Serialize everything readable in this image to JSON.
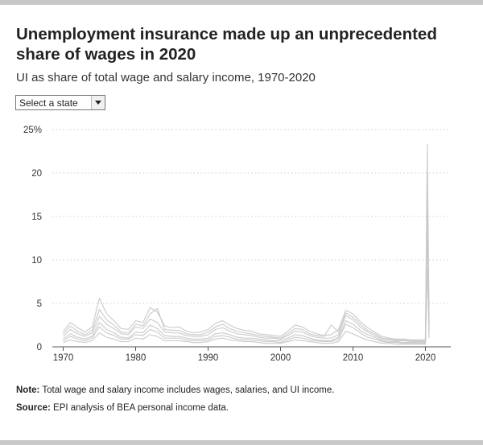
{
  "header": {
    "title": "Unemployment insurance made up an unprecedented share of wages in 2020",
    "subtitle": "UI as share of total wage and salary income, 1970-2020"
  },
  "state_selector": {
    "selected": "Select a state"
  },
  "footer": {
    "note_label": "Note:",
    "note_text": " Total wage and salary income includes wages, salaries, and UI income.",
    "source_label": "Source:",
    "source_text": " EPI analysis of BEA personal income data."
  },
  "colors": {
    "lines": "#c9c9c9",
    "grid": "#cfcfcf",
    "axis": "#555555"
  },
  "chart_data": {
    "type": "line",
    "title": "Unemployment insurance made up an unprecedented share of wages in 2020",
    "subtitle": "UI as share of total wage and salary income, 1970-2020",
    "xlabel": "",
    "ylabel": "",
    "xlim": [
      1968.5,
      2023.5
    ],
    "ylim": [
      0,
      25
    ],
    "y_ticks": [
      0,
      5,
      10,
      15,
      20,
      25
    ],
    "y_tick_labels": [
      "0",
      "5",
      "10",
      "15",
      "20",
      "25%"
    ],
    "x_ticks": [
      1970,
      1980,
      1990,
      2000,
      2010,
      2020
    ],
    "x_tick_labels": [
      "1970",
      "1980",
      "1990",
      "2000",
      "2010",
      "2020"
    ],
    "grid": "horizontal dotted",
    "legend": "none",
    "x": [
      1970,
      1971,
      1972,
      1973,
      1974,
      1975,
      1976,
      1977,
      1978,
      1979,
      1980,
      1981,
      1982,
      1983,
      1984,
      1985,
      1986,
      1987,
      1988,
      1989,
      1990,
      1991,
      1992,
      1993,
      1994,
      1995,
      1996,
      1997,
      1998,
      1999,
      2000,
      2001,
      2002,
      2003,
      2004,
      2005,
      2006,
      2007,
      2008,
      2009,
      2010,
      2011,
      2012,
      2013,
      2014,
      2015,
      2016,
      2017,
      2018,
      2019,
      2020,
      2020.25,
      2020.5
    ],
    "series": [
      {
        "values": [
          0.7,
          1.2,
          0.9,
          0.7,
          1.0,
          2.3,
          1.6,
          1.3,
          0.9,
          0.9,
          1.4,
          1.3,
          2.0,
          1.7,
          1.0,
          1.0,
          1.0,
          0.8,
          0.7,
          0.7,
          0.8,
          1.2,
          1.3,
          1.1,
          0.9,
          0.8,
          0.8,
          0.7,
          0.6,
          0.6,
          0.5,
          0.8,
          1.1,
          1.0,
          0.8,
          0.7,
          0.6,
          0.6,
          0.9,
          2.6,
          2.2,
          1.6,
          1.1,
          0.9,
          0.6,
          0.5,
          0.5,
          0.4,
          0.4,
          0.4,
          0.4,
          13.5,
          1.5
        ]
      },
      {
        "values": [
          1.2,
          2.0,
          1.5,
          1.2,
          1.6,
          3.5,
          2.6,
          2.1,
          1.5,
          1.4,
          2.3,
          2.1,
          3.2,
          2.8,
          1.7,
          1.6,
          1.6,
          1.3,
          1.2,
          1.2,
          1.4,
          2.0,
          2.2,
          1.8,
          1.5,
          1.4,
          1.3,
          1.1,
          1.0,
          1.0,
          0.9,
          1.3,
          1.8,
          1.7,
          1.3,
          1.1,
          1.0,
          1.0,
          1.4,
          3.6,
          3.1,
          2.3,
          1.7,
          1.3,
          0.9,
          0.8,
          0.7,
          0.7,
          0.6,
          0.6,
          0.6,
          17.5,
          2.5
        ]
      },
      {
        "values": [
          0.5,
          0.8,
          0.6,
          0.5,
          0.7,
          1.6,
          1.1,
          0.9,
          0.6,
          0.6,
          1.0,
          0.9,
          1.4,
          1.2,
          0.7,
          0.7,
          0.7,
          0.6,
          0.5,
          0.5,
          0.6,
          0.9,
          1.0,
          0.8,
          0.7,
          0.6,
          0.6,
          0.5,
          0.4,
          0.4,
          0.4,
          0.6,
          0.8,
          0.7,
          0.6,
          0.5,
          0.4,
          0.4,
          0.6,
          1.8,
          1.5,
          1.1,
          0.8,
          0.6,
          0.4,
          0.4,
          0.3,
          0.3,
          0.3,
          0.3,
          0.3,
          9.0,
          1.0
        ]
      },
      {
        "values": [
          1.8,
          2.8,
          2.2,
          1.7,
          2.3,
          5.6,
          3.8,
          3.0,
          2.1,
          2.0,
          3.0,
          2.8,
          4.5,
          4.0,
          2.4,
          2.2,
          2.3,
          1.8,
          1.6,
          1.7,
          2.0,
          2.7,
          3.0,
          2.5,
          2.1,
          1.9,
          1.8,
          1.5,
          1.4,
          1.3,
          1.2,
          1.8,
          2.5,
          2.3,
          1.8,
          1.5,
          1.3,
          1.4,
          2.0,
          4.2,
          3.8,
          2.9,
          2.2,
          1.7,
          1.2,
          1.0,
          0.9,
          0.9,
          0.8,
          0.8,
          0.8,
          23.3,
          3.2
        ]
      },
      {
        "values": [
          0.9,
          1.5,
          1.1,
          0.9,
          1.2,
          2.8,
          2.0,
          1.6,
          1.1,
          1.0,
          1.7,
          1.6,
          2.5,
          2.1,
          1.3,
          1.2,
          1.2,
          1.0,
          0.9,
          0.9,
          1.0,
          1.5,
          1.6,
          1.4,
          1.1,
          1.0,
          1.0,
          0.9,
          0.8,
          0.7,
          0.7,
          1.0,
          1.4,
          1.3,
          1.0,
          0.8,
          0.7,
          0.7,
          1.1,
          3.0,
          2.6,
          1.9,
          1.4,
          1.1,
          0.7,
          0.6,
          0.6,
          0.5,
          0.5,
          0.5,
          0.5,
          15.0,
          2.0
        ]
      },
      {
        "values": [
          1.5,
          2.4,
          1.8,
          1.4,
          1.9,
          4.3,
          3.1,
          2.5,
          1.7,
          1.6,
          2.6,
          2.4,
          3.8,
          4.4,
          2.0,
          1.9,
          1.9,
          1.5,
          1.4,
          1.4,
          1.7,
          2.3,
          2.6,
          2.1,
          1.8,
          1.6,
          1.5,
          1.3,
          1.2,
          1.1,
          1.0,
          1.5,
          2.1,
          2.0,
          1.5,
          1.3,
          1.2,
          2.5,
          1.7,
          3.9,
          3.4,
          2.6,
          1.9,
          1.5,
          1.0,
          0.9,
          0.8,
          0.8,
          0.7,
          0.7,
          0.7,
          20.0,
          2.8
        ]
      }
    ]
  }
}
